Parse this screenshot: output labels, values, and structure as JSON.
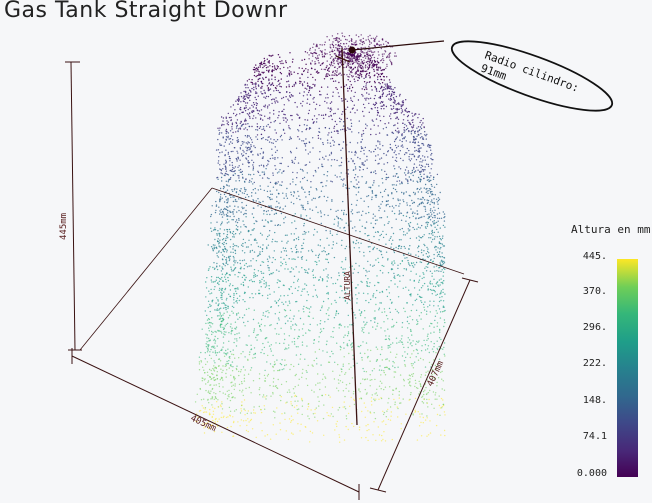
{
  "title": "Gas Tank Straight Downr",
  "annotation": {
    "line1": "Radio cilindro:",
    "line2": "91mm"
  },
  "dimensions": {
    "height": "445mm",
    "width": "405mm",
    "depth": "407mm",
    "axis": "ALTURA"
  },
  "colorbar": {
    "title": "Altura en mm",
    "ticks": [
      "445.",
      "370.",
      "296.",
      "222.",
      "148.",
      "74.1",
      "0.000"
    ],
    "colors": [
      "#440154",
      "#482878",
      "#3e4989",
      "#31688e",
      "#26828e",
      "#1f9e89",
      "#35b779",
      "#6ece58",
      "#fde725"
    ]
  }
}
